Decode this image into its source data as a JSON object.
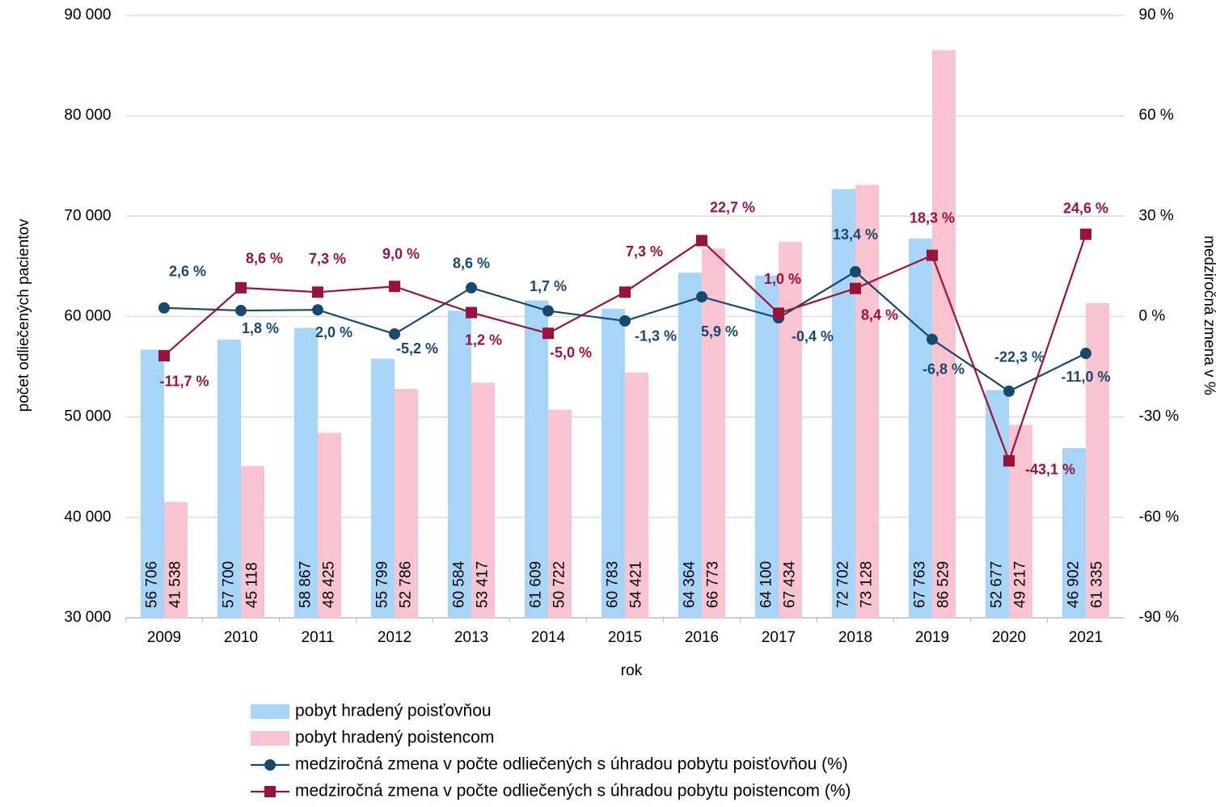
{
  "chart_data": {
    "type": "bar_line",
    "xlabel": "rok",
    "ylabel": "počet odliečených pacientov",
    "y2label": "medziročná zmena v %",
    "categories": [
      "2009",
      "2010",
      "2011",
      "2012",
      "2013",
      "2014",
      "2015",
      "2016",
      "2017",
      "2018",
      "2019",
      "2020",
      "2021"
    ],
    "ylim": [
      30000,
      90000
    ],
    "yticks": [
      {
        "value": 30000,
        "label": "30 000"
      },
      {
        "value": 40000,
        "label": "40 000"
      },
      {
        "value": 50000,
        "label": "50 000"
      },
      {
        "value": 60000,
        "label": "60 000"
      },
      {
        "value": 70000,
        "label": "70 000"
      },
      {
        "value": 80000,
        "label": "80 000"
      },
      {
        "value": 90000,
        "label": "90 000"
      }
    ],
    "y2lim": [
      -90,
      90
    ],
    "y2ticks": [
      {
        "value": -90,
        "label": "-90 %"
      },
      {
        "value": -60,
        "label": "-60 %"
      },
      {
        "value": -30,
        "label": "-30 %"
      },
      {
        "value": 0,
        "label": "0 %"
      },
      {
        "value": 30,
        "label": "30 %"
      },
      {
        "value": 60,
        "label": "60 %"
      },
      {
        "value": 90,
        "label": "90 %"
      }
    ],
    "grid": true,
    "series": [
      {
        "name": "pobyt hradený poisťovňou",
        "kind": "bar",
        "color": "#a6d5f7",
        "values": [
          56706,
          57700,
          58867,
          55799,
          60584,
          61609,
          60783,
          64364,
          64100,
          72702,
          67763,
          52677,
          46902
        ],
        "value_labels": [
          "56 706",
          "57 700",
          "58 867",
          "55 799",
          "60 584",
          "61 609",
          "60 783",
          "64 364",
          "64 100",
          "72 702",
          "67 763",
          "52 677",
          "46 902"
        ]
      },
      {
        "name": "pobyt hradený poistencom",
        "kind": "bar",
        "color": "#f9c3cf",
        "values": [
          41538,
          45118,
          48425,
          52786,
          53417,
          50722,
          54421,
          66773,
          67434,
          73128,
          86529,
          49217,
          61335
        ],
        "value_labels": [
          "41 538",
          "45 118",
          "48 425",
          "52 786",
          "53 417",
          "50 722",
          "54 421",
          "66 773",
          "67 434",
          "73 128",
          "86 529",
          "49 217",
          "61 335"
        ]
      },
      {
        "name": "medziročná zmena v počte odliečených s úhradou pobytu poisťovňou (%)",
        "kind": "line",
        "marker": "circle",
        "axis": "y2",
        "color": "#17486e",
        "values": [
          2.6,
          1.8,
          2.0,
          -5.2,
          8.6,
          1.7,
          -1.3,
          5.9,
          -0.4,
          13.4,
          -6.8,
          -22.3,
          -11.0
        ],
        "value_labels": [
          "2,6 %",
          "1,8 %",
          "2,0 %",
          "-5,2 %",
          "8,6 %",
          "1,7 %",
          "-1,3 %",
          "5,9 %",
          "-0,4 %",
          "13,4 %",
          "-6,8 %",
          "-22,3 %",
          "-11,0 %"
        ]
      },
      {
        "name": "medziročná zmena v počte odliečených s úhradou pobytu poistencom (%)",
        "kind": "line",
        "marker": "square",
        "axis": "y2",
        "color": "#9a1238",
        "values": [
          -11.7,
          8.6,
          7.3,
          9.0,
          1.2,
          -5.0,
          7.3,
          22.7,
          1.0,
          8.4,
          18.3,
          -43.1,
          24.6
        ],
        "value_labels": [
          "-11,7 %",
          "8,6 %",
          "7,3 %",
          "9,0 %",
          "1,2 %",
          "-5,0 %",
          "7,3 %",
          "22,7 %",
          "1,0 %",
          "8,4 %",
          "18,3 %",
          "-43,1 %",
          "24,6 %"
        ]
      }
    ]
  }
}
